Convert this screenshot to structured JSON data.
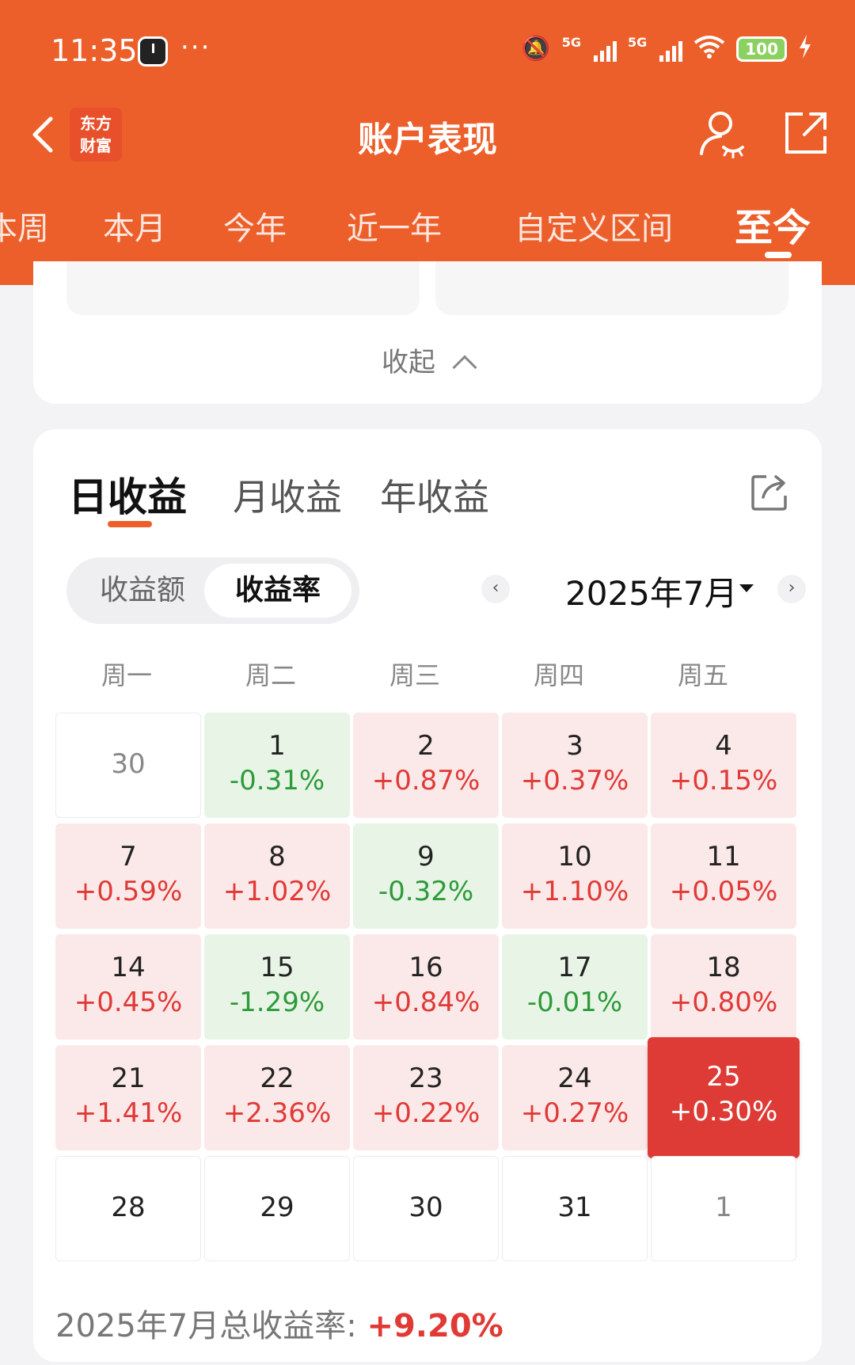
{
  "status": {
    "time": "11:35",
    "network1": "5G",
    "network2": "5G",
    "battery": "100"
  },
  "nav": {
    "logo_line1": "东方",
    "logo_line2": "财富",
    "title": "账户表现"
  },
  "period_tabs": [
    "本周",
    "本月",
    "今年",
    "近一年",
    "自定义区间",
    "至今"
  ],
  "collapse_label": "收起",
  "profit_tabs": [
    "日收益",
    "月收益",
    "年收益"
  ],
  "toggle": {
    "amount": "收益额",
    "rate": "收益率"
  },
  "month": {
    "prev": "‹",
    "label": "2025年7月",
    "next": "›"
  },
  "weekdays": [
    "周一",
    "周二",
    "周三",
    "周四",
    "周五"
  ],
  "calendar": [
    [
      {
        "d": "30",
        "p": ""
      },
      {
        "d": "1",
        "p": "-0.31%"
      },
      {
        "d": "2",
        "p": "+0.87%"
      },
      {
        "d": "3",
        "p": "+0.37%"
      },
      {
        "d": "4",
        "p": "+0.15%"
      }
    ],
    [
      {
        "d": "7",
        "p": "+0.59%"
      },
      {
        "d": "8",
        "p": "+1.02%"
      },
      {
        "d": "9",
        "p": "-0.32%"
      },
      {
        "d": "10",
        "p": "+1.10%"
      },
      {
        "d": "11",
        "p": "+0.05%"
      }
    ],
    [
      {
        "d": "14",
        "p": "+0.45%"
      },
      {
        "d": "15",
        "p": "-1.29%"
      },
      {
        "d": "16",
        "p": "+0.84%"
      },
      {
        "d": "17",
        "p": "-0.01%"
      },
      {
        "d": "18",
        "p": "+0.80%"
      }
    ],
    [
      {
        "d": "21",
        "p": "+1.41%"
      },
      {
        "d": "22",
        "p": "+2.36%"
      },
      {
        "d": "23",
        "p": "+0.22%"
      },
      {
        "d": "24",
        "p": "+0.27%"
      },
      {
        "d": "25",
        "p": "+0.30%"
      }
    ],
    [
      {
        "d": "28",
        "p": ""
      },
      {
        "d": "29",
        "p": ""
      },
      {
        "d": "30",
        "p": ""
      },
      {
        "d": "31",
        "p": ""
      },
      {
        "d": "1",
        "p": ""
      }
    ]
  ],
  "selected_day": "25",
  "total": {
    "label": "2025年7月总收益率: ",
    "value": "+9.20%"
  },
  "colors": {
    "brand": "#ec5f2a",
    "positive": "#e03a36",
    "negative": "#2e9a3a"
  }
}
